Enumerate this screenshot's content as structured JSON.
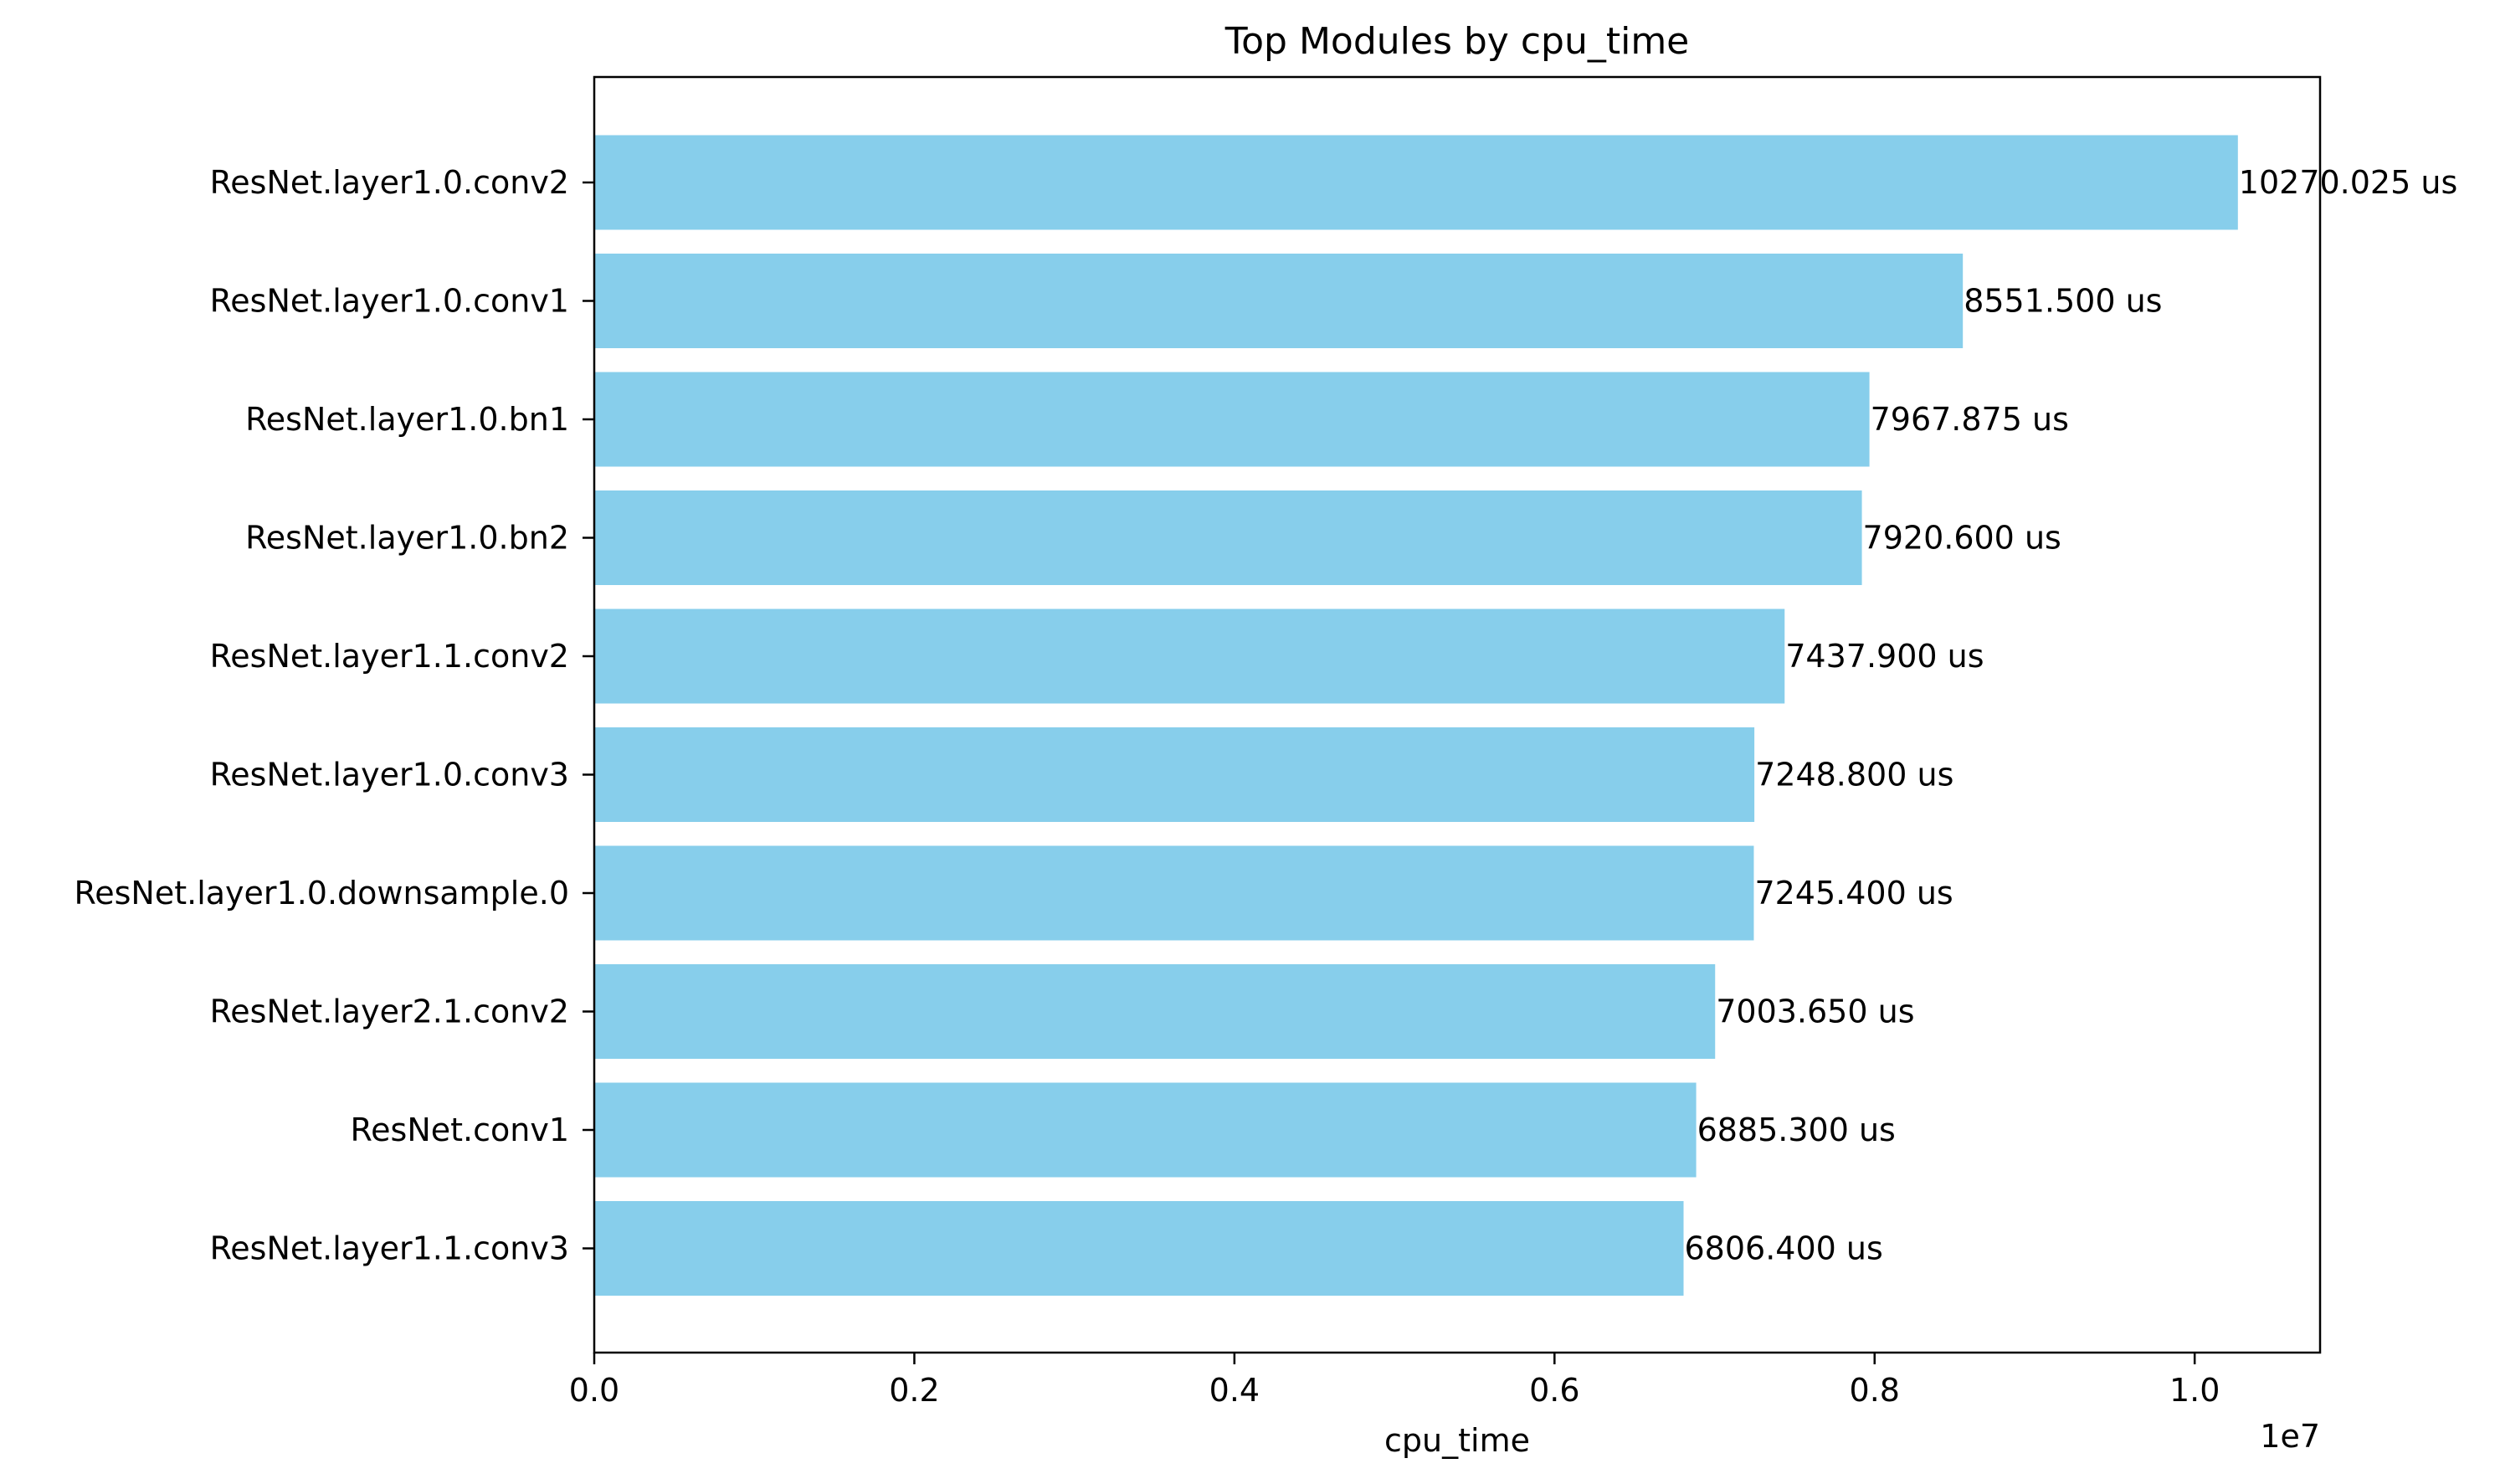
{
  "chart_data": {
    "type": "bar",
    "orientation": "horizontal",
    "title": "Top Modules by cpu_time",
    "xlabel": "cpu_time",
    "ylabel": "",
    "x_offset_text": "1e7",
    "xlim": [
      0,
      10783526.25
    ],
    "x_ticks": [
      0,
      2000000,
      4000000,
      6000000,
      8000000,
      10000000
    ],
    "x_tick_labels": [
      "0.0",
      "0.2",
      "0.4",
      "0.6",
      "0.8",
      "1.0"
    ],
    "bar_color": "#87CEEB",
    "grid": false,
    "categories": [
      "ResNet.layer1.0.conv2",
      "ResNet.layer1.0.conv1",
      "ResNet.layer1.0.bn1",
      "ResNet.layer1.0.bn2",
      "ResNet.layer1.1.conv2",
      "ResNet.layer1.0.conv3",
      "ResNet.layer1.0.downsample.0",
      "ResNet.layer2.1.conv2",
      "ResNet.conv1",
      "ResNet.layer1.1.conv3"
    ],
    "values": [
      10270025,
      8551500,
      7967875,
      7920600,
      7437900,
      7248800,
      7245400,
      7003650,
      6885300,
      6806400
    ],
    "data_labels": [
      "10270.025 us",
      "8551.500 us",
      "7967.875 us",
      "7920.600 us",
      "7437.900 us",
      "7248.800 us",
      "7245.400 us",
      "7003.650 us",
      "6885.300 us",
      "6806.400 us"
    ]
  }
}
